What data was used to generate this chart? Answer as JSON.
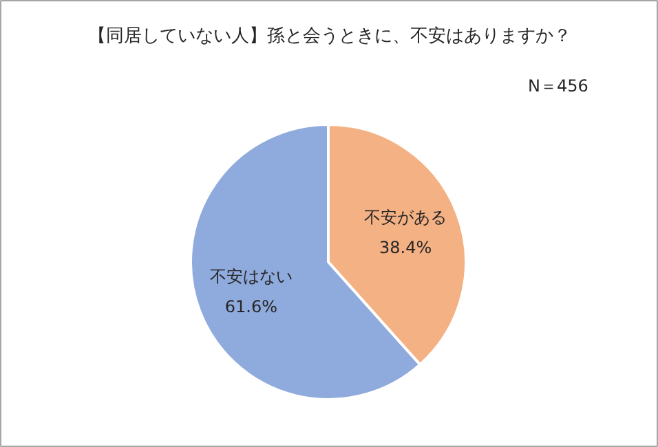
{
  "chart_data": {
    "type": "pie",
    "title": "【同居していない人】孫と会うときに、不安はありますか？",
    "categories": [
      "不安がある",
      "不安はない"
    ],
    "values": [
      38.4,
      61.6
    ],
    "colors": [
      "#f4b183",
      "#8faadc"
    ],
    "value_labels": [
      "38.4%",
      "61.6%"
    ],
    "annotations": [
      "N＝456"
    ]
  }
}
